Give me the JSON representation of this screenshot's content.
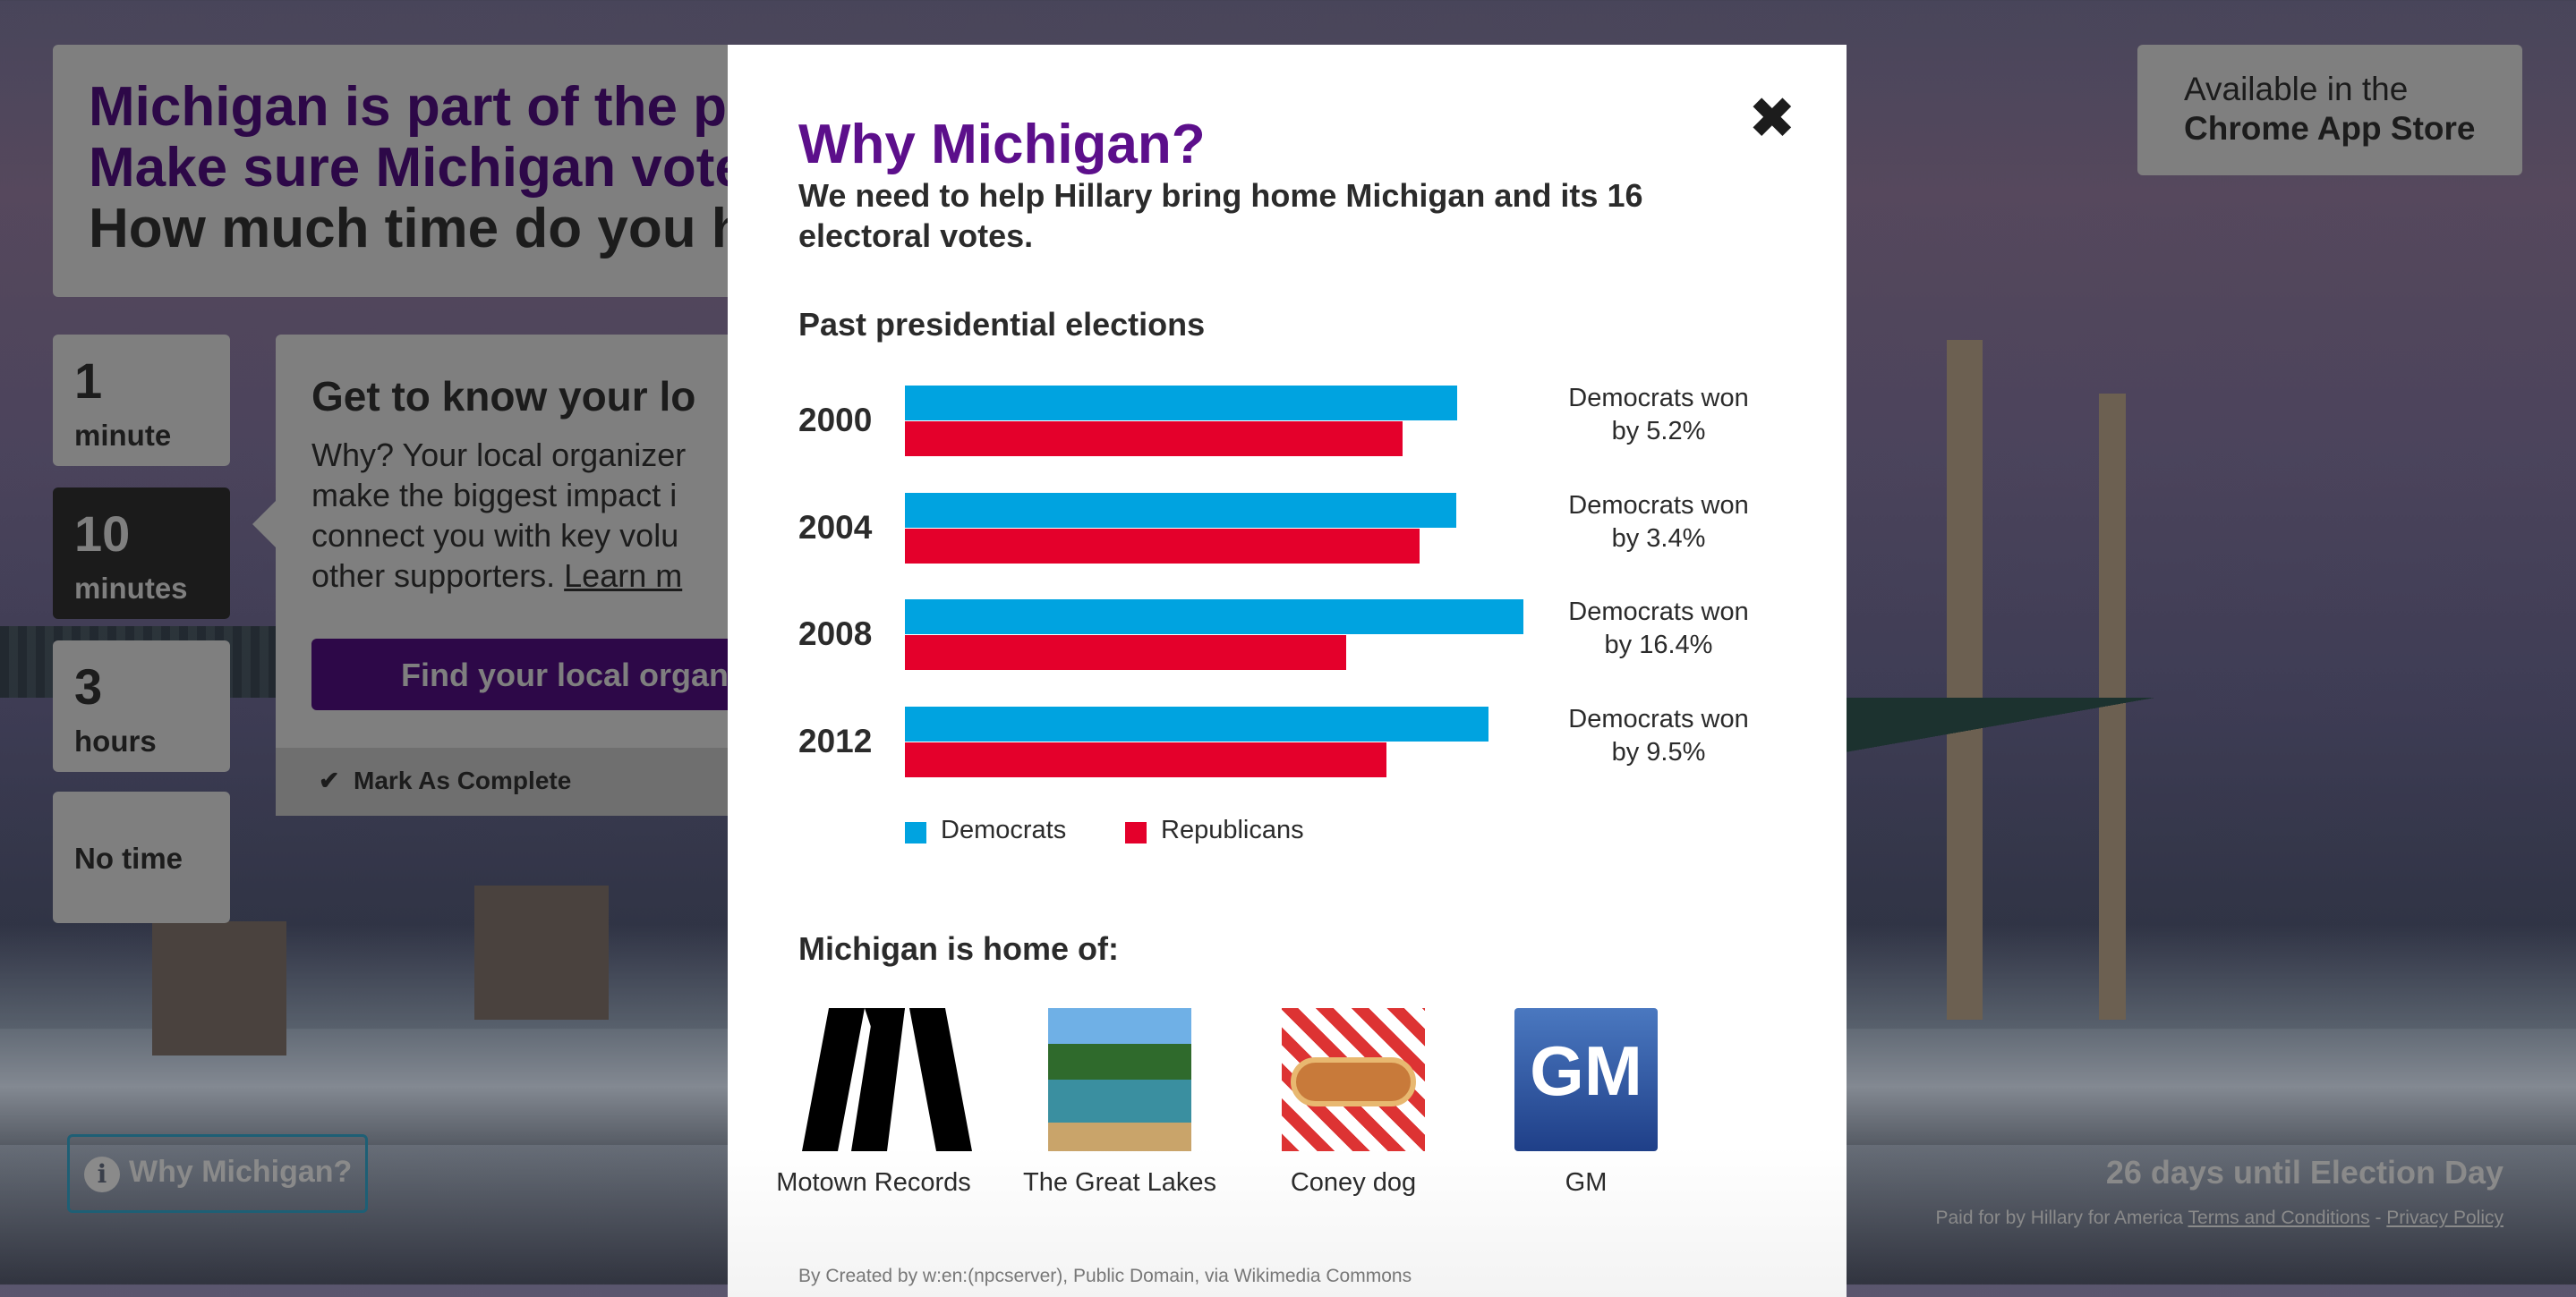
{
  "header": {
    "line1": "Michigan is part of the p",
    "line2": "Make sure Michigan vote",
    "line3": "How much time do you h"
  },
  "chrome": {
    "line1": "Available in the",
    "line2": "Chrome App Store"
  },
  "time_options": [
    {
      "n": "1",
      "u": "minute"
    },
    {
      "n": "10",
      "u": "minutes"
    },
    {
      "n": "3",
      "u": "hours"
    },
    {
      "n": "",
      "u": "No time"
    }
  ],
  "card": {
    "title": "Get to know your lo",
    "body": "Why? Your local organizer make the biggest impact i connect you with key volu other supporters. ",
    "learn": "Learn m",
    "find": "Find your local organ",
    "mark": "Mark As Complete"
  },
  "why_button": "Why Michigan?",
  "footer": {
    "days": "26 days until Election Day",
    "paid": "Paid for by Hillary for America ",
    "terms": "Terms and Conditions",
    "sep": " - ",
    "privacy": "Privacy Policy"
  },
  "modal": {
    "title": "Why Michigan?",
    "subtitle": "We need to help Hillary bring home Michigan and its 16 electoral votes.",
    "chart_title": "Past presidential elections",
    "legend": {
      "dem": "Democrats",
      "rep": "Republicans"
    },
    "home_title": "Michigan is home of:",
    "home": [
      {
        "label": "Motown Records"
      },
      {
        "label": "The Great Lakes"
      },
      {
        "label": "Coney dog"
      },
      {
        "label": "GM"
      }
    ],
    "caption": "By Created by w:en:(npcserver), Public Domain, via Wikimedia Commons"
  },
  "chart_data": {
    "type": "bar",
    "title": "Past presidential elections",
    "categories": [
      "2000",
      "2004",
      "2008",
      "2012"
    ],
    "series": [
      {
        "name": "Democrats",
        "color": "#00a3e0",
        "values": [
          51.3,
          51.2,
          57.4,
          54.2
        ]
      },
      {
        "name": "Republicans",
        "color": "#e4002b",
        "values": [
          46.2,
          47.8,
          41.0,
          44.7
        ]
      }
    ],
    "annotations": [
      {
        "l1": "Democrats won",
        "l2": "by 5.2%"
      },
      {
        "l1": "Democrats won",
        "l2": "by 3.4%"
      },
      {
        "l1": "Democrats won",
        "l2": "by 16.4%"
      },
      {
        "l1": "Democrats won",
        "l2": "by 9.5%"
      }
    ],
    "xlim": [
      0,
      60
    ],
    "legend": "bottom-left"
  }
}
